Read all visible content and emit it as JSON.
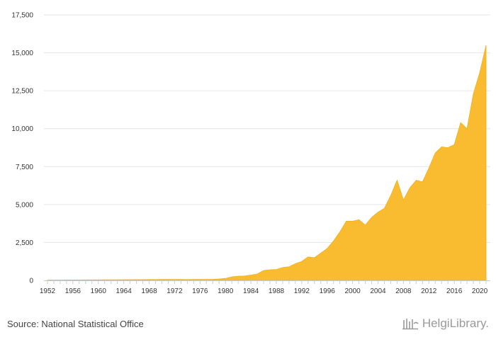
{
  "chart_data": {
    "type": "area",
    "title": "",
    "xlabel": "",
    "ylabel": "",
    "ylim": [
      0,
      17500
    ],
    "xlim": [
      1952,
      2021
    ],
    "y_ticks": [
      0,
      2500,
      5000,
      7500,
      10000,
      12500,
      15000,
      17500
    ],
    "y_tick_labels": [
      "0",
      "2,500",
      "5,000",
      "7,500",
      "10,000",
      "12,500",
      "15,000",
      "17,500"
    ],
    "x_ticks": [
      1952,
      1956,
      1960,
      1964,
      1968,
      1972,
      1976,
      1980,
      1984,
      1988,
      1992,
      1996,
      2000,
      2004,
      2008,
      2012,
      2016,
      2020
    ],
    "grid": true,
    "color": "#F9BB30",
    "series": [
      {
        "name": "value",
        "x": [
          1952,
          1953,
          1954,
          1955,
          1956,
          1957,
          1958,
          1959,
          1960,
          1961,
          1962,
          1963,
          1964,
          1965,
          1966,
          1967,
          1968,
          1969,
          1970,
          1971,
          1972,
          1973,
          1974,
          1975,
          1976,
          1977,
          1978,
          1979,
          1980,
          1981,
          1982,
          1983,
          1984,
          1985,
          1986,
          1987,
          1988,
          1989,
          1990,
          1991,
          1992,
          1993,
          1994,
          1995,
          1996,
          1997,
          1998,
          1999,
          2000,
          2001,
          2002,
          2003,
          2004,
          2005,
          2006,
          2007,
          2008,
          2009,
          2010,
          2011,
          2012,
          2013,
          2014,
          2015,
          2016,
          2017,
          2018,
          2019,
          2020,
          2021
        ],
        "values": [
          20,
          22,
          24,
          26,
          28,
          30,
          32,
          34,
          36,
          38,
          40,
          42,
          45,
          48,
          50,
          52,
          55,
          58,
          60,
          62,
          65,
          60,
          58,
          60,
          62,
          65,
          70,
          90,
          130,
          230,
          280,
          290,
          350,
          420,
          650,
          700,
          720,
          850,
          900,
          1100,
          1250,
          1550,
          1500,
          1800,
          2100,
          2600,
          3200,
          3900,
          3900,
          4000,
          3650,
          4150,
          4500,
          4750,
          5600,
          6600,
          5300,
          6100,
          6600,
          6500,
          7400,
          8400,
          8800,
          8750,
          8950,
          10400,
          10000,
          12300,
          13700,
          15500
        ]
      }
    ]
  },
  "footer": {
    "source": "Source: National Statistical Office",
    "brand": "HelgiLibrary."
  },
  "colors": {
    "grid": "#e6e6e6",
    "axis": "#cccccc",
    "area": "#F9BB30"
  }
}
